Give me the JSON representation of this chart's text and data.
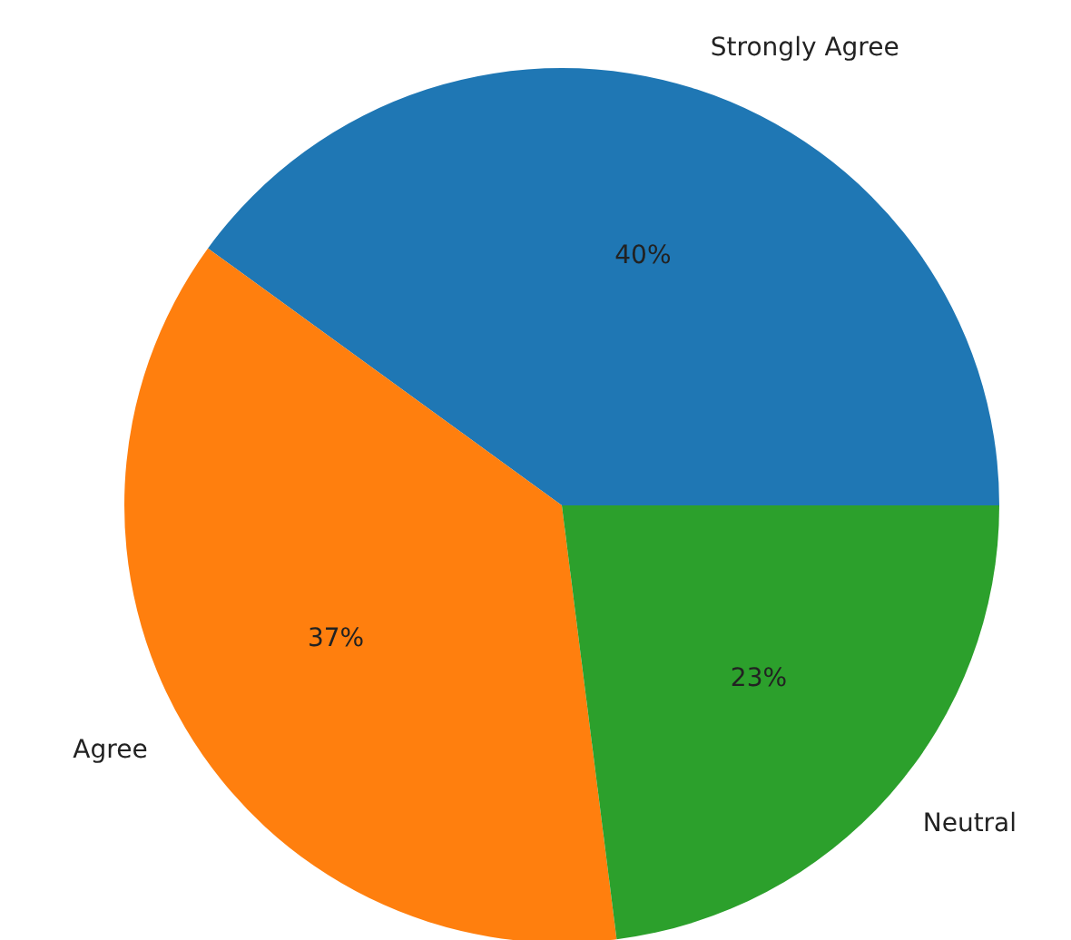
{
  "chart_data": {
    "type": "pie",
    "categories": [
      "Strongly Agree",
      "Agree",
      "Neutral"
    ],
    "values": [
      40,
      37,
      23
    ],
    "colors": [
      "#1f77b4",
      "#ff7f0e",
      "#2ca02c"
    ],
    "value_labels": [
      "40%",
      "37%",
      "23%"
    ]
  }
}
